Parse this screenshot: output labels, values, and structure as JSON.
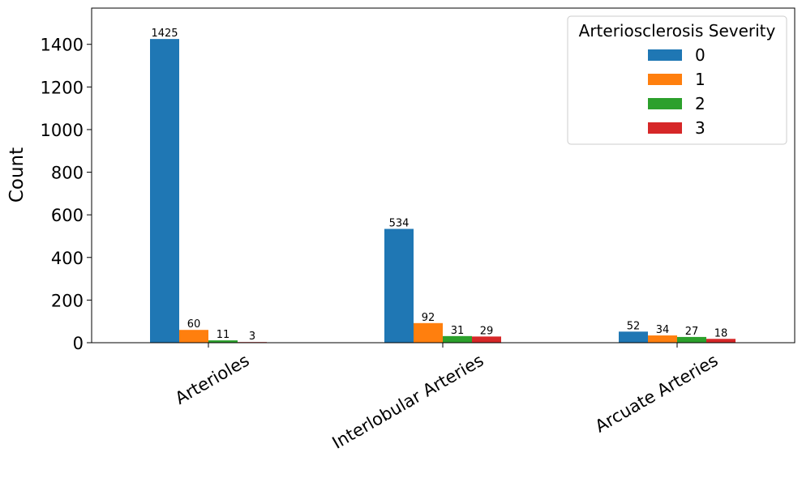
{
  "chart_data": {
    "type": "bar",
    "title": "",
    "xlabel": "",
    "ylabel": "Count",
    "ylim": [
      0,
      1570
    ],
    "yticks": [
      0,
      200,
      400,
      600,
      800,
      1000,
      1200,
      1400
    ],
    "grid": false,
    "categories": [
      "Arterioles",
      "Interlobular Arteries",
      "Arcuate Arteries"
    ],
    "legend": {
      "title": "Arteriosclerosis Severity",
      "placement": "top-right"
    },
    "series": [
      {
        "name": "0",
        "color": "#1f77b4",
        "values": [
          1425,
          534,
          52
        ]
      },
      {
        "name": "1",
        "color": "#ff7f0e",
        "values": [
          60,
          92,
          34
        ]
      },
      {
        "name": "2",
        "color": "#2ca02c",
        "values": [
          11,
          31,
          27
        ]
      },
      {
        "name": "3",
        "color": "#d62728",
        "values": [
          3,
          29,
          18
        ]
      }
    ]
  }
}
